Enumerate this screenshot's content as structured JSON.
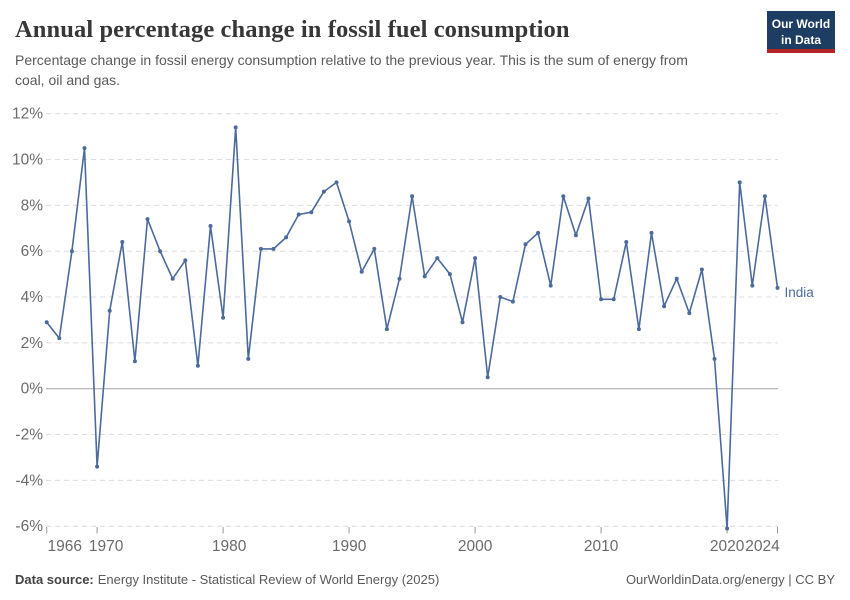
{
  "header": {
    "title": "Annual percentage change in fossil fuel consumption",
    "subtitle_line1": "Percentage change in fossil energy consumption relative to the previous year. This is the sum of energy from",
    "subtitle_line2": "coal, oil and gas."
  },
  "logo": {
    "line1": "Our World",
    "line2": "in Data"
  },
  "chart_data": {
    "type": "line",
    "title": "Annual percentage change in fossil fuel consumption",
    "entity_label": "India",
    "x": [
      1966,
      1967,
      1968,
      1969,
      1970,
      1971,
      1972,
      1973,
      1974,
      1975,
      1976,
      1977,
      1978,
      1979,
      1980,
      1981,
      1982,
      1983,
      1984,
      1985,
      1986,
      1987,
      1988,
      1989,
      1990,
      1991,
      1992,
      1993,
      1994,
      1995,
      1996,
      1997,
      1998,
      1999,
      2000,
      2001,
      2002,
      2003,
      2004,
      2005,
      2006,
      2007,
      2008,
      2009,
      2010,
      2011,
      2012,
      2013,
      2014,
      2015,
      2016,
      2017,
      2018,
      2019,
      2020,
      2021,
      2022,
      2023,
      2024
    ],
    "series": [
      {
        "name": "India",
        "values": [
          2.9,
          2.2,
          6.0,
          10.5,
          -3.4,
          3.4,
          6.4,
          1.2,
          7.4,
          6.0,
          4.8,
          5.6,
          1.0,
          7.1,
          3.1,
          11.4,
          1.3,
          6.1,
          6.1,
          6.6,
          7.6,
          7.7,
          8.6,
          9.0,
          7.3,
          5.1,
          6.1,
          2.6,
          4.8,
          8.4,
          4.9,
          5.7,
          5.0,
          2.9,
          5.7,
          0.5,
          4.0,
          3.8,
          6.3,
          6.8,
          4.5,
          8.4,
          6.7,
          8.3,
          3.9,
          3.9,
          6.4,
          2.6,
          6.8,
          3.6,
          4.8,
          3.3,
          5.2,
          1.3,
          -6.1,
          9.0,
          4.5,
          8.4,
          4.4
        ]
      }
    ],
    "ylim": [
      -6,
      12
    ],
    "yticks": [
      {
        "value": 12,
        "label": "12%"
      },
      {
        "value": 10,
        "label": "10%"
      },
      {
        "value": 8,
        "label": "8%"
      },
      {
        "value": 6,
        "label": "6%"
      },
      {
        "value": 4,
        "label": "4%"
      },
      {
        "value": 2,
        "label": "2%"
      },
      {
        "value": 0,
        "label": "0%"
      },
      {
        "value": -2,
        "label": "-2%"
      },
      {
        "value": -4,
        "label": "-4%"
      },
      {
        "value": -6,
        "label": "-6%"
      }
    ],
    "xticks": [
      {
        "year": 1966,
        "label": "1966"
      },
      {
        "year": 1970,
        "label": "1970"
      },
      {
        "year": 1980,
        "label": "1980"
      },
      {
        "year": 1990,
        "label": "1990"
      },
      {
        "year": 2000,
        "label": "2000"
      },
      {
        "year": 2010,
        "label": "2010"
      },
      {
        "year": 2020,
        "label": "2020"
      },
      {
        "year": 2024,
        "label": "2024"
      }
    ],
    "grid": true,
    "legend": "end-of-line-label"
  },
  "colors": {
    "line": "#4c6a9c",
    "grid": "#dcdcdc",
    "zero_line": "#a3a3a3",
    "axis_text": "#6b6b6b",
    "logo_bg": "#1d3d63",
    "logo_bar": "#b42326"
  },
  "footer": {
    "source_label": "Data source:",
    "source_text": "Energy Institute - Statistical Review of World Energy (2025)",
    "credit": "OurWorldinData.org/energy | CC BY"
  }
}
